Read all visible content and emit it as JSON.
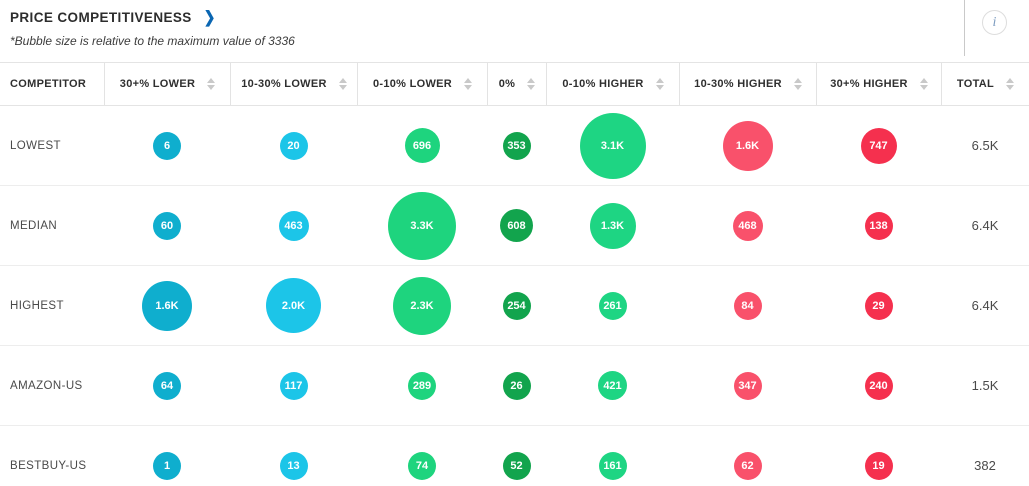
{
  "header": {
    "title": "PRICE COMPETITIVENESS",
    "subtitle": "*Bubble size is relative to the maximum value of 3336",
    "info_icon": "i"
  },
  "table": {
    "max_bubble_value": 3336,
    "columns": [
      {
        "label": "COMPETITOR",
        "sortable": false
      },
      {
        "label": "30+% LOWER",
        "sortable": true,
        "bubble_color": "#0FAECE"
      },
      {
        "label": "10-30% LOWER",
        "sortable": true,
        "bubble_color": "#1CC5E8"
      },
      {
        "label": "0-10% LOWER",
        "sortable": true,
        "bubble_color": "#1ED47E"
      },
      {
        "label": "0%",
        "sortable": true,
        "bubble_color": "#12A44D"
      },
      {
        "label": "0-10% HIGHER",
        "sortable": true,
        "bubble_color": "#1ED583"
      },
      {
        "label": "10-30% HIGHER",
        "sortable": true,
        "bubble_color": "#F9516B"
      },
      {
        "label": "30+% HIGHER",
        "sortable": true,
        "bubble_color": "#F5304E"
      },
      {
        "label": "TOTAL",
        "sortable": true
      }
    ],
    "rows": [
      {
        "competitor": "LOWEST",
        "total": "6.5K",
        "bubbles": [
          {
            "label": "6",
            "value": 6
          },
          {
            "label": "20",
            "value": 20
          },
          {
            "label": "696",
            "value": 696
          },
          {
            "label": "353",
            "value": 353
          },
          {
            "label": "3.1K",
            "value": 3100
          },
          {
            "label": "1.6K",
            "value": 1600
          },
          {
            "label": "747",
            "value": 747
          }
        ]
      },
      {
        "competitor": "MEDIAN",
        "total": "6.4K",
        "bubbles": [
          {
            "label": "60",
            "value": 60
          },
          {
            "label": "463",
            "value": 463
          },
          {
            "label": "3.3K",
            "value": 3336
          },
          {
            "label": "608",
            "value": 608
          },
          {
            "label": "1.3K",
            "value": 1300
          },
          {
            "label": "468",
            "value": 468
          },
          {
            "label": "138",
            "value": 138
          }
        ]
      },
      {
        "competitor": "HIGHEST",
        "total": "6.4K",
        "bubbles": [
          {
            "label": "1.6K",
            "value": 1600
          },
          {
            "label": "2.0K",
            "value": 2000
          },
          {
            "label": "2.3K",
            "value": 2300
          },
          {
            "label": "254",
            "value": 254
          },
          {
            "label": "261",
            "value": 261
          },
          {
            "label": "84",
            "value": 84
          },
          {
            "label": "29",
            "value": 29
          }
        ]
      },
      {
        "competitor": "AMAZON-US",
        "total": "1.5K",
        "bubbles": [
          {
            "label": "64",
            "value": 64
          },
          {
            "label": "117",
            "value": 117
          },
          {
            "label": "289",
            "value": 289
          },
          {
            "label": "26",
            "value": 26
          },
          {
            "label": "421",
            "value": 421
          },
          {
            "label": "347",
            "value": 347
          },
          {
            "label": "240",
            "value": 240
          }
        ]
      },
      {
        "competitor": "BESTBUY-US",
        "total": "382",
        "bubbles": [
          {
            "label": "1",
            "value": 1
          },
          {
            "label": "13",
            "value": 13
          },
          {
            "label": "74",
            "value": 74
          },
          {
            "label": "52",
            "value": 52
          },
          {
            "label": "161",
            "value": 161
          },
          {
            "label": "62",
            "value": 62
          },
          {
            "label": "19",
            "value": 19
          }
        ]
      }
    ]
  }
}
